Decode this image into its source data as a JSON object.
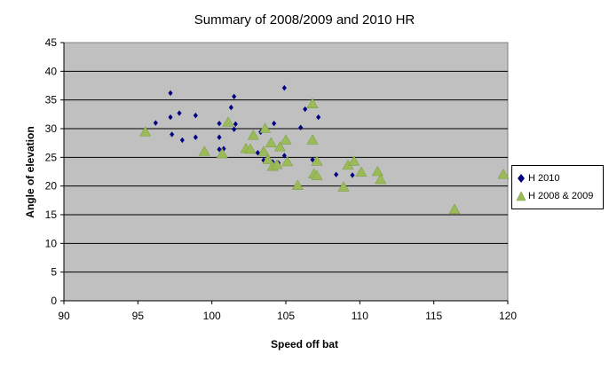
{
  "chart_data": {
    "type": "scatter",
    "title": "Summary of 2008/2009 and 2010 HR",
    "xlabel": "Speed off bat",
    "ylabel": "Angle of elevation",
    "xlim": [
      90,
      120
    ],
    "ylim": [
      0,
      45
    ],
    "x_ticks": [
      "90",
      "95",
      "100",
      "105",
      "110",
      "115",
      "120"
    ],
    "y_ticks": [
      "0",
      "5",
      "10",
      "15",
      "20",
      "25",
      "30",
      "35",
      "40",
      "45"
    ],
    "grid": true,
    "legend_position": "right",
    "plot_background": "#c0c0c0",
    "series": [
      {
        "name": "H 2010",
        "marker": "diamond",
        "color": "#000080",
        "points": [
          [
            96.2,
            31.0
          ],
          [
            97.2,
            36.2
          ],
          [
            97.2,
            32.0
          ],
          [
            97.3,
            29.0
          ],
          [
            97.8,
            32.7
          ],
          [
            98.0,
            28.0
          ],
          [
            98.9,
            32.3
          ],
          [
            98.9,
            28.5
          ],
          [
            100.5,
            30.9
          ],
          [
            100.5,
            28.5
          ],
          [
            100.5,
            26.4
          ],
          [
            100.8,
            26.5
          ],
          [
            101.1,
            31.2
          ],
          [
            101.3,
            33.7
          ],
          [
            101.5,
            35.6
          ],
          [
            101.5,
            29.9
          ],
          [
            101.6,
            30.8
          ],
          [
            103.1,
            25.8
          ],
          [
            103.3,
            29.4
          ],
          [
            103.5,
            24.5
          ],
          [
            104.1,
            24.2
          ],
          [
            104.2,
            30.9
          ],
          [
            104.5,
            24.0
          ],
          [
            104.9,
            37.1
          ],
          [
            104.9,
            25.3
          ],
          [
            106.0,
            30.2
          ],
          [
            106.3,
            33.4
          ],
          [
            106.8,
            24.6
          ],
          [
            107.2,
            32.0
          ],
          [
            108.4,
            22.0
          ],
          [
            109.5,
            21.9
          ]
        ]
      },
      {
        "name": "H 2008 & 2009",
        "marker": "triangle",
        "color": "#9bbb59",
        "points": [
          [
            95.5,
            29.4
          ],
          [
            99.5,
            26.0
          ],
          [
            100.7,
            25.6
          ],
          [
            101.1,
            31.1
          ],
          [
            102.3,
            26.5
          ],
          [
            102.6,
            26.4
          ],
          [
            102.8,
            28.8
          ],
          [
            103.5,
            26.0
          ],
          [
            103.6,
            30.0
          ],
          [
            103.8,
            24.6
          ],
          [
            104.0,
            27.5
          ],
          [
            104.1,
            23.4
          ],
          [
            104.4,
            23.7
          ],
          [
            104.6,
            26.8
          ],
          [
            105.0,
            28.0
          ],
          [
            105.1,
            24.2
          ],
          [
            105.8,
            20.1
          ],
          [
            106.8,
            34.3
          ],
          [
            106.8,
            28.0
          ],
          [
            106.9,
            22.1
          ],
          [
            107.1,
            24.3
          ],
          [
            107.1,
            21.8
          ],
          [
            108.9,
            19.8
          ],
          [
            109.2,
            23.6
          ],
          [
            109.6,
            24.3
          ],
          [
            110.1,
            22.4
          ],
          [
            111.2,
            22.5
          ],
          [
            111.4,
            21.1
          ],
          [
            116.4,
            15.9
          ],
          [
            119.7,
            22.0
          ]
        ]
      }
    ]
  }
}
